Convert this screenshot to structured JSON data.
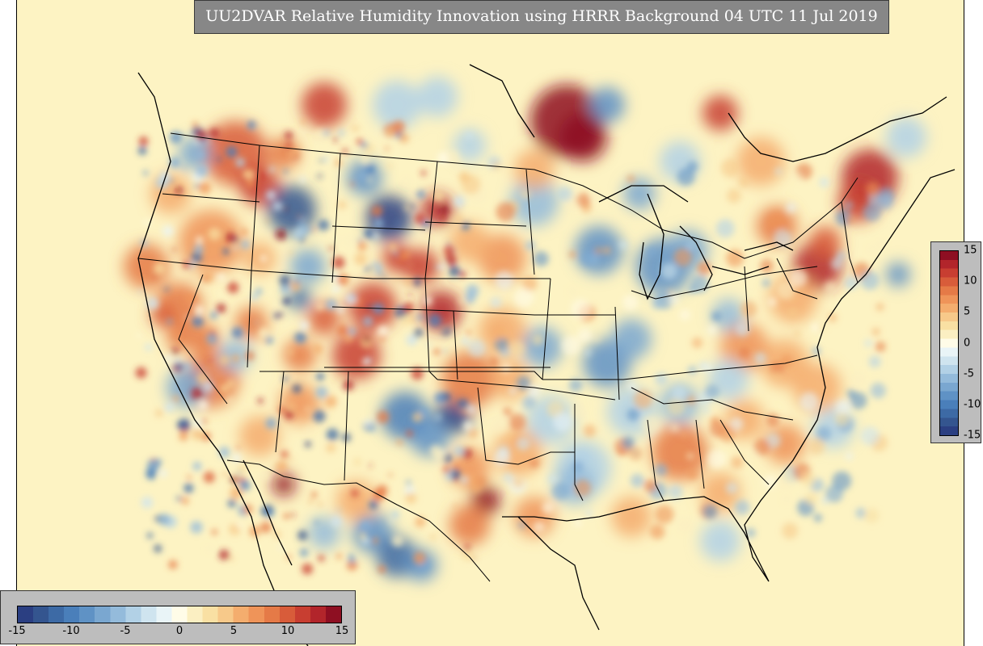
{
  "title": "UU2DVAR Relative Humidity Innovation using HRRR Background 04 UTC 11 Jul 2019",
  "colorbar": {
    "min": -15,
    "max": 15,
    "ticks": [
      "-15",
      "-10",
      "-5",
      "0",
      "5",
      "10",
      "15"
    ],
    "colors": [
      "#2b3f82",
      "#34558f",
      "#3d6aa5",
      "#4a7fba",
      "#5f92c5",
      "#7aa7d0",
      "#94bbdb",
      "#b2d1e6",
      "#cfe4ef",
      "#e9f4f7",
      "#fffce8",
      "#fbefc2",
      "#f9e0a3",
      "#f7c98a",
      "#f4ad6e",
      "#ef9459",
      "#e57a47",
      "#d85c3a",
      "#c83e31",
      "#b2252b",
      "#8e0f22"
    ]
  },
  "colors": {
    "background": "#fdf3c3",
    "panel": "#bdbdbd",
    "title_box": "#878787",
    "borders": "#000000"
  }
}
